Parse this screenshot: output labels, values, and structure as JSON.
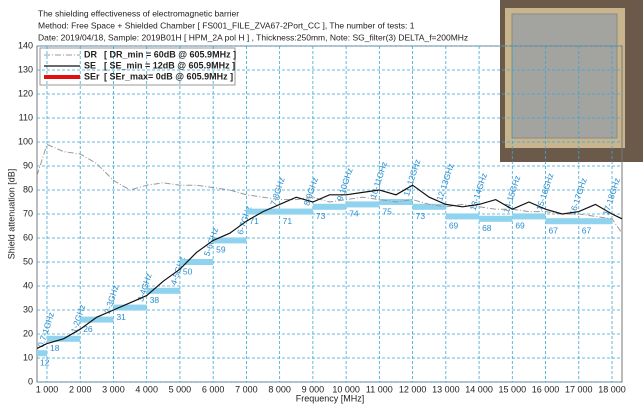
{
  "chart_data": {
    "type": "line",
    "header": [
      "The shielding effectiveness of electromagnetic barrier",
      "Method: Free Space + Shielded Chamber [ FS001_FILE_ZVA67-2Port_CC ], The number of tests: 1",
      "Date: 2019/04/18, Sample: 2019B01H [ HPM_2A pol H ] , Thickness:250mm, Note: SG_filter(3) DELTA_f=200MHz"
    ],
    "x_label": "Frequency [MHz]",
    "y_label": "Shield attenuation [dB]",
    "xlim": [
      700,
      18300
    ],
    "ylim": [
      0,
      140
    ],
    "xticks": [
      {
        "value": 1000,
        "label": "1 000"
      },
      {
        "value": 2000,
        "label": "2 000"
      },
      {
        "value": 3000,
        "label": "3 000"
      },
      {
        "value": 4000,
        "label": "4 000"
      },
      {
        "value": 5000,
        "label": "5 000"
      },
      {
        "value": 6000,
        "label": "6 000"
      },
      {
        "value": 7000,
        "label": "7 000"
      },
      {
        "value": 8000,
        "label": "8 000"
      },
      {
        "value": 9000,
        "label": "9 000"
      },
      {
        "value": 10000,
        "label": "10 000"
      },
      {
        "value": 11000,
        "label": "11 000"
      },
      {
        "value": 12000,
        "label": "12 000"
      },
      {
        "value": 13000,
        "label": "13 000"
      },
      {
        "value": 14000,
        "label": "14 000"
      },
      {
        "value": 15000,
        "label": "15 000"
      },
      {
        "value": 16000,
        "label": "16 000"
      },
      {
        "value": 17000,
        "label": "17 000"
      },
      {
        "value": 18000,
        "label": "18 000"
      }
    ],
    "yticks": [
      0,
      10,
      20,
      30,
      40,
      50,
      60,
      70,
      80,
      90,
      100,
      110,
      120,
      130,
      140
    ],
    "grid": true,
    "x": [
      700,
      1000,
      1500,
      2000,
      2500,
      3000,
      3500,
      4000,
      4500,
      5000,
      5500,
      6000,
      6500,
      7000,
      7500,
      8000,
      8500,
      9000,
      9500,
      10000,
      10500,
      11000,
      11500,
      12000,
      12500,
      13000,
      13500,
      14000,
      14500,
      15000,
      15500,
      16000,
      16500,
      17000,
      17500,
      18000,
      18300
    ],
    "series": [
      {
        "name": "DR",
        "note": "[ DR_min = 60dB @ 605.9MHz ]",
        "color": "#999999",
        "dash": "6 2 1 2",
        "width": 1,
        "values": [
          86,
          99,
          96,
          95,
          91,
          84,
          80,
          82,
          83,
          82,
          82,
          81,
          80,
          78,
          77,
          76,
          76,
          77,
          75,
          76,
          77,
          76,
          75,
          76,
          74,
          73,
          74,
          73,
          72,
          72,
          71,
          71,
          70,
          70,
          69,
          68,
          62
        ]
      },
      {
        "name": "SE",
        "note": "[ SE_min = 12dB @ 605.9MHz ]",
        "color": "#111111",
        "dash": "",
        "width": 1.2,
        "values": [
          14,
          16,
          18,
          22,
          27,
          30,
          33,
          36,
          42,
          47,
          54,
          59,
          62,
          67,
          71,
          74,
          77,
          75,
          78,
          78,
          79,
          80,
          78,
          82,
          77,
          74,
          73,
          74,
          76,
          72,
          75,
          72,
          70,
          71,
          74,
          70,
          68
        ]
      },
      {
        "name": "SEr",
        "note": "[ SEr_max= 0dB @ 605.9MHz ]",
        "color": "#e01010",
        "dash": "",
        "width": 4
      }
    ],
    "bands": {
      "color": "#8fd3ee",
      "labels": [
        "0.7-1GHz",
        "1-2GHz",
        "2-3GHz",
        "3-4GHz",
        "4-5GHz",
        "5-6GHz",
        "6-7GHz",
        "7-8GHz",
        "8-9GHz",
        "9-10GHz",
        "10-11GHz",
        "11-12GHz",
        "12-13GHz",
        "13-14GHz",
        "14-15GHz",
        "15-16GHz",
        "16-17GHz",
        "17-18GHz"
      ],
      "edges": [
        700,
        1000,
        2000,
        3000,
        4000,
        5000,
        6000,
        7000,
        8000,
        9000,
        10000,
        11000,
        12000,
        13000,
        14000,
        15000,
        16000,
        17000,
        18000
      ],
      "values": [
        12,
        18,
        26,
        31,
        38,
        50,
        59,
        71,
        71,
        73,
        74,
        75,
        73,
        69,
        68,
        69,
        67,
        67
      ]
    }
  }
}
